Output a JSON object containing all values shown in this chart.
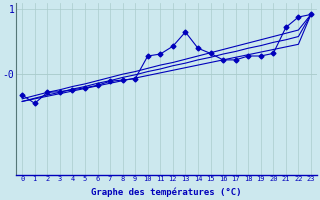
{
  "xlabel": "Graphe des températures (°C)",
  "background_color": "#cce8ee",
  "line_color": "#0000bb",
  "x_values": [
    0,
    1,
    2,
    3,
    4,
    5,
    6,
    7,
    8,
    9,
    10,
    11,
    12,
    13,
    14,
    15,
    16,
    17,
    18,
    19,
    20,
    21,
    22,
    23
  ],
  "y_main": [
    -0.32,
    -0.45,
    -0.28,
    -0.27,
    -0.24,
    -0.21,
    -0.17,
    -0.11,
    -0.09,
    -0.07,
    0.28,
    0.31,
    0.43,
    0.65,
    0.4,
    0.32,
    0.22,
    0.22,
    0.28,
    0.28,
    0.32,
    0.72,
    0.88,
    0.92
  ],
  "y_line1": [
    -0.38,
    -0.33,
    -0.28,
    -0.24,
    -0.19,
    -0.15,
    -0.1,
    -0.05,
    0.0,
    0.04,
    0.09,
    0.14,
    0.18,
    0.23,
    0.28,
    0.33,
    0.38,
    0.43,
    0.48,
    0.53,
    0.58,
    0.63,
    0.68,
    0.92
  ],
  "y_line2": [
    -0.42,
    -0.37,
    -0.32,
    -0.28,
    -0.23,
    -0.19,
    -0.14,
    -0.1,
    -0.05,
    -0.01,
    0.04,
    0.08,
    0.13,
    0.17,
    0.22,
    0.26,
    0.31,
    0.35,
    0.4,
    0.44,
    0.49,
    0.53,
    0.58,
    0.92
  ],
  "y_line3": [
    -0.42,
    -0.38,
    -0.34,
    -0.3,
    -0.26,
    -0.22,
    -0.18,
    -0.14,
    -0.1,
    -0.06,
    -0.02,
    0.02,
    0.06,
    0.1,
    0.14,
    0.18,
    0.22,
    0.26,
    0.3,
    0.34,
    0.38,
    0.42,
    0.46,
    0.92
  ],
  "xlim": [
    -0.5,
    23.5
  ],
  "ylim": [
    -1.55,
    1.1
  ],
  "ytick_pos": [
    0.0,
    1.0
  ],
  "ytick_labels": [
    "-0",
    "1"
  ],
  "xtick_labels": [
    "0",
    "1",
    "2",
    "3",
    "4",
    "5",
    "6",
    "7",
    "8",
    "9",
    "10",
    "11",
    "12",
    "13",
    "14",
    "15",
    "16",
    "17",
    "18",
    "19",
    "20",
    "21",
    "22",
    "23"
  ],
  "grid_color": "#aacccc",
  "marker": "D",
  "markersize": 2.5,
  "linewidth": 0.8
}
